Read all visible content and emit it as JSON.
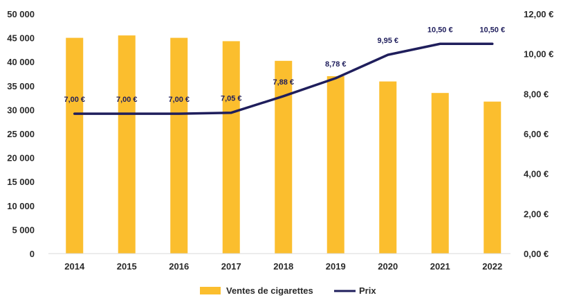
{
  "chart_data": {
    "type": "bar",
    "categories": [
      "2014",
      "2015",
      "2016",
      "2017",
      "2018",
      "2019",
      "2020",
      "2021",
      "2022"
    ],
    "series": [
      {
        "name": "Ventes de cigarettes",
        "type": "bar",
        "axis": "left",
        "color": "#FBBE2E",
        "values": [
          45000,
          45500,
          45000,
          44300,
          40200,
          37000,
          35900,
          33500,
          31700
        ]
      },
      {
        "name": "Prix",
        "type": "line",
        "axis": "right",
        "color": "#1F1E5C",
        "values": [
          7.0,
          7.0,
          7.0,
          7.05,
          7.88,
          8.78,
          9.95,
          10.5,
          10.5
        ],
        "data_labels": [
          "7,00 €",
          "7,00 €",
          "7,00 €",
          "7,05 €",
          "7,88 €",
          "8,78 €",
          "9,95 €",
          "10,50 €",
          "10,50 €"
        ]
      }
    ],
    "y_left": {
      "range": [
        0,
        50000
      ],
      "tick_labels": [
        "0",
        "5 000",
        "10 000",
        "15 000",
        "20 000",
        "25 000",
        "30 000",
        "35 000",
        "40 000",
        "45 000",
        "50 000"
      ]
    },
    "y_right": {
      "range": [
        0,
        12
      ],
      "tick_labels": [
        "0,00 €",
        "2,00 €",
        "4,00 €",
        "6,00 €",
        "8,00 €",
        "10,00 €",
        "12,00 €"
      ]
    },
    "grid": false,
    "legend": "bottom"
  }
}
